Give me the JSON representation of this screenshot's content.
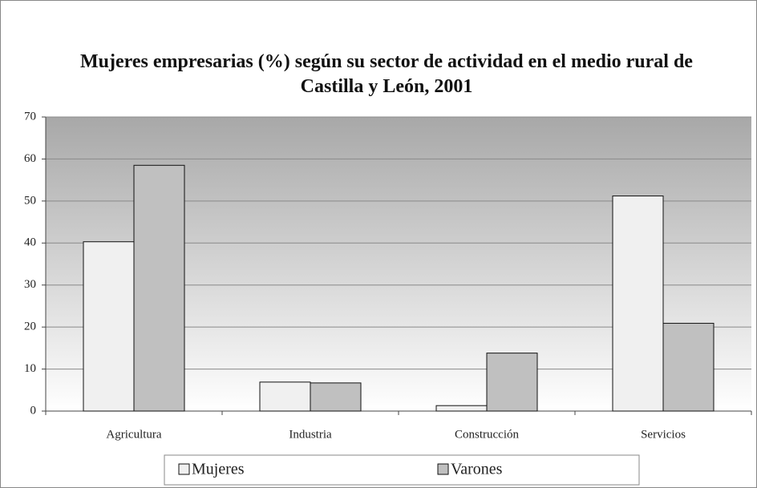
{
  "chart_data": {
    "type": "bar",
    "title": "Mujeres empresarias (%) según su sector de actividad en el medio rural de Castilla y León, 2001",
    "categories": [
      "Agricultura",
      "Industria",
      "Construcción",
      "Servicios"
    ],
    "series": [
      {
        "name": "Mujeres",
        "color": "#f0f0f0",
        "values": [
          40.3,
          6.9,
          1.3,
          51.2
        ]
      },
      {
        "name": "Varones",
        "color": "#c0c0c0",
        "values": [
          58.5,
          6.7,
          13.8,
          20.9
        ]
      }
    ],
    "ylim": [
      0,
      70
    ],
    "yticks": [
      0,
      10,
      20,
      30,
      40,
      50,
      60,
      70
    ],
    "grid": true
  }
}
